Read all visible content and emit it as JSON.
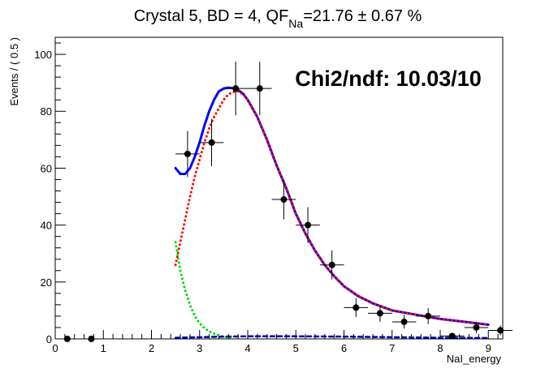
{
  "chart_data": {
    "type": "scatter",
    "title_main": "Crystal 5, BD = 4, QF",
    "title_sub": "Na",
    "title_value": "=21.76 ± 0.67 %",
    "annotation": "Chi2/ndf: 10.03/10",
    "xlabel": "NaI_energy",
    "ylabel": "Events / ( 0.5 )",
    "xlim": [
      0,
      9.3
    ],
    "ylim": [
      0,
      106
    ],
    "xticks": [
      0,
      1,
      2,
      3,
      4,
      5,
      6,
      7,
      8,
      9
    ],
    "yticks": [
      0,
      20,
      40,
      60,
      80,
      100
    ],
    "grid": false,
    "points": [
      {
        "x": 0.25,
        "y": 0,
        "yerr": 0
      },
      {
        "x": 0.75,
        "y": 0,
        "yerr": 0
      },
      {
        "x": 2.75,
        "y": 65,
        "yerr": 8.1
      },
      {
        "x": 3.25,
        "y": 69,
        "yerr": 8.3
      },
      {
        "x": 3.75,
        "y": 88,
        "yerr": 9.4
      },
      {
        "x": 4.25,
        "y": 88,
        "yerr": 9.4
      },
      {
        "x": 4.75,
        "y": 49,
        "yerr": 7.0
      },
      {
        "x": 5.25,
        "y": 40,
        "yerr": 6.3
      },
      {
        "x": 5.75,
        "y": 26,
        "yerr": 5.1
      },
      {
        "x": 6.25,
        "y": 11,
        "yerr": 3.3
      },
      {
        "x": 6.75,
        "y": 9,
        "yerr": 3.0
      },
      {
        "x": 7.25,
        "y": 6,
        "yerr": 2.4
      },
      {
        "x": 7.75,
        "y": 8,
        "yerr": 2.8
      },
      {
        "x": 8.25,
        "y": 1,
        "yerr": 1.0
      },
      {
        "x": 8.75,
        "y": 4,
        "yerr": 2.0
      },
      {
        "x": 9.25,
        "y": 3,
        "yerr": 1.7
      }
    ],
    "series": [
      {
        "color": "#0000ff",
        "style": "solid",
        "x": [
          2.5,
          2.6,
          2.7,
          2.8,
          2.9,
          3.0,
          3.1,
          3.2,
          3.3,
          3.4,
          3.5,
          3.6,
          3.7,
          3.8,
          3.9,
          4.0,
          4.2,
          4.4,
          4.6,
          4.8,
          5.0,
          5.2,
          5.4,
          5.6,
          5.8,
          6.0,
          6.3,
          6.6,
          7.0,
          7.5,
          8.0,
          8.5,
          9.0
        ],
        "y": [
          60,
          58,
          58,
          60,
          64,
          69,
          75,
          80,
          84,
          87,
          88,
          88.3,
          88.1,
          87.5,
          86.2,
          84,
          78,
          70,
          61,
          53,
          44,
          37,
          31,
          26,
          22,
          18.5,
          15,
          12.5,
          10,
          8.5,
          7,
          6,
          5
        ]
      },
      {
        "color": "#ff0000",
        "style": "dotted",
        "x": [
          2.5,
          2.6,
          2.7,
          2.8,
          2.9,
          3.0,
          3.1,
          3.2,
          3.3,
          3.4,
          3.5,
          3.6,
          3.7,
          3.8,
          3.9,
          4.0,
          4.2,
          4.4,
          4.6,
          4.8,
          5.0,
          5.2,
          5.4,
          5.6,
          5.8,
          6.0,
          6.3,
          6.6,
          7.0,
          7.5,
          8.0,
          8.5,
          9.0
        ],
        "y": [
          26,
          34,
          42,
          50,
          57,
          63,
          69,
          74,
          78,
          81,
          84,
          86,
          86.8,
          87,
          86,
          84,
          78,
          70,
          61,
          53,
          44,
          37,
          31,
          26,
          22,
          18.5,
          15,
          12.5,
          10,
          8.5,
          7,
          6,
          5
        ]
      },
      {
        "color": "#00dd00",
        "style": "dotted",
        "x": [
          2.5,
          2.6,
          2.7,
          2.8,
          2.9,
          3.0,
          3.1,
          3.2,
          3.3,
          3.4,
          3.5,
          3.6,
          3.7
        ],
        "y": [
          34,
          24,
          17,
          12,
          8,
          5.5,
          3.8,
          2.6,
          1.8,
          1.2,
          0.8,
          0.5,
          0.3
        ]
      },
      {
        "color": "#0000aa",
        "style": "dashed",
        "x": [
          2.5,
          3.0,
          3.5,
          4.0,
          5.0,
          6.0,
          7.0,
          8.0,
          9.0
        ],
        "y": [
          0.4,
          0.6,
          0.8,
          0.9,
          0.9,
          0.8,
          0.6,
          0.4,
          0.3
        ]
      }
    ]
  }
}
